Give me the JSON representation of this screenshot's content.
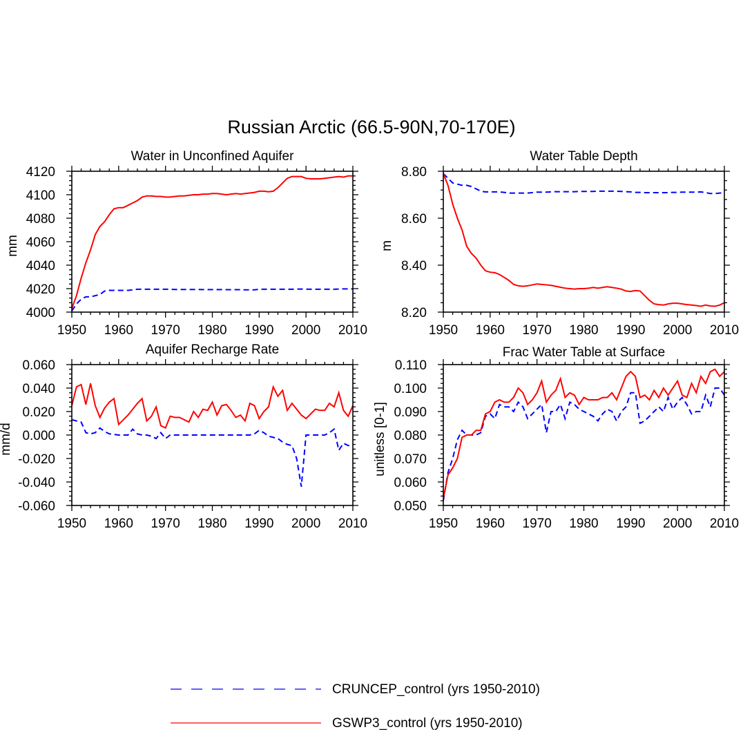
{
  "figure_title": "Russian Arctic (66.5-90N,70-170E)",
  "colors": {
    "cruncep": "#0000ff",
    "gswp3": "#ff0000",
    "axis": "#000000"
  },
  "legend": {
    "items": [
      {
        "label": "CRUNCEP_control (yrs 1950-2010)",
        "style": "dashed",
        "color": "#0000ff"
      },
      {
        "label": "GSWP3_control (yrs 1950-2010)",
        "style": "solid",
        "color": "#ff0000"
      }
    ]
  },
  "chart_data": [
    {
      "type": "line",
      "title": "Water in Unconfined Aquifer",
      "xlabel": "",
      "ylabel": "mm",
      "xlim": [
        1950,
        2010
      ],
      "ylim": [
        4000,
        4120
      ],
      "xticks": [
        "1950",
        "1960",
        "1970",
        "1980",
        "1990",
        "2000",
        "2010"
      ],
      "yticks": [
        "4000",
        "4020",
        "4040",
        "4060",
        "4080",
        "4100",
        "4120"
      ],
      "ytick_values": [
        4000,
        4020,
        4040,
        4060,
        4080,
        4100,
        4120
      ],
      "x_start": 1950,
      "series": [
        {
          "name": "CRUNCEP_control",
          "values": [
            4001,
            4007,
            4011,
            4013,
            4013,
            4014,
            4015,
            4018,
            4018.5,
            4018.5,
            4018.5,
            4018.5,
            4018.5,
            4019,
            4019.5,
            4019.5,
            4019.5,
            4019.5,
            4019.5,
            4019.5,
            4019.5,
            4019.5,
            4019.3,
            4019.3,
            4019.3,
            4019.3,
            4019.3,
            4019.3,
            4019.2,
            4019.2,
            4019.2,
            4019.2,
            4019.2,
            4019.1,
            4019.1,
            4019.1,
            4019.1,
            4019,
            4019,
            4019,
            4019.5,
            4019.5,
            4019.5,
            4019.5,
            4019.5,
            4019.5,
            4019.5,
            4019.5,
            4019.6,
            4019.6,
            4019.6,
            4019.5,
            4019.5,
            4019.5,
            4019.5,
            4019.5,
            4019.5,
            4019.6,
            4019.8,
            4019.8,
            4019.8
          ]
        },
        {
          "name": "GSWP3_control",
          "values": [
            4003,
            4014,
            4029,
            4042,
            4053,
            4066,
            4073,
            4077,
            4083,
            4088,
            4089,
            4089,
            4091,
            4093,
            4095,
            4098,
            4099,
            4099,
            4098.5,
            4098.5,
            4098,
            4098,
            4098.5,
            4099,
            4099,
            4099.5,
            4100,
            4100,
            4100.5,
            4100.5,
            4101,
            4101,
            4100.5,
            4100,
            4100.5,
            4101,
            4100.5,
            4101,
            4101.5,
            4102,
            4103,
            4103,
            4102.5,
            4103,
            4106,
            4110,
            4114,
            4115.5,
            4115.5,
            4115.5,
            4114,
            4113.5,
            4113.5,
            4113.5,
            4114,
            4114.5,
            4115,
            4115.5,
            4115,
            4116,
            4116
          ]
        }
      ]
    },
    {
      "type": "line",
      "title": "Water Table Depth",
      "xlabel": "",
      "ylabel": "m",
      "xlim": [
        1950,
        2010
      ],
      "ylim": [
        8.2,
        8.8
      ],
      "xticks": [
        "1950",
        "1960",
        "1970",
        "1980",
        "1990",
        "2000",
        "2010"
      ],
      "yticks": [
        "8.20",
        "8.40",
        "8.60",
        "8.80"
      ],
      "ytick_values": [
        8.2,
        8.4,
        8.6,
        8.8
      ],
      "x_start": 1950,
      "series": [
        {
          "name": "CRUNCEP_control",
          "values": [
            8.79,
            8.77,
            8.75,
            8.745,
            8.74,
            8.74,
            8.735,
            8.725,
            8.715,
            8.712,
            8.712,
            8.712,
            8.712,
            8.71,
            8.707,
            8.707,
            8.707,
            8.707,
            8.707,
            8.709,
            8.711,
            8.711,
            8.711,
            8.712,
            8.713,
            8.713,
            8.713,
            8.713,
            8.713,
            8.714,
            8.714,
            8.714,
            8.714,
            8.715,
            8.715,
            8.715,
            8.715,
            8.715,
            8.714,
            8.713,
            8.712,
            8.71,
            8.71,
            8.709,
            8.709,
            8.709,
            8.709,
            8.709,
            8.709,
            8.71,
            8.71,
            8.711,
            8.711,
            8.711,
            8.711,
            8.712,
            8.709,
            8.705,
            8.705,
            8.707,
            8.709
          ]
        },
        {
          "name": "GSWP3_control",
          "values": [
            8.79,
            8.74,
            8.66,
            8.6,
            8.55,
            8.48,
            8.45,
            8.43,
            8.4,
            8.376,
            8.37,
            8.368,
            8.36,
            8.348,
            8.335,
            8.318,
            8.312,
            8.31,
            8.312,
            8.316,
            8.32,
            8.318,
            8.316,
            8.314,
            8.31,
            8.306,
            8.302,
            8.3,
            8.298,
            8.3,
            8.3,
            8.302,
            8.305,
            8.302,
            8.305,
            8.308,
            8.305,
            8.302,
            8.298,
            8.29,
            8.288,
            8.292,
            8.29,
            8.27,
            8.25,
            8.235,
            8.232,
            8.23,
            8.235,
            8.238,
            8.238,
            8.235,
            8.232,
            8.23,
            8.228,
            8.225,
            8.23,
            8.226,
            8.225,
            8.23,
            8.24
          ]
        }
      ]
    },
    {
      "type": "line",
      "title": "Aquifer Recharge Rate",
      "xlabel": "",
      "ylabel": "mm/d",
      "xlim": [
        1950,
        2010
      ],
      "ylim": [
        -0.06,
        0.06
      ],
      "xticks": [
        "1950",
        "1960",
        "1970",
        "1980",
        "1990",
        "2000",
        "2010"
      ],
      "yticks": [
        "-0.060",
        "-0.040",
        "-0.020",
        "0.000",
        "0.020",
        "0.040",
        "0.060"
      ],
      "ytick_values": [
        -0.06,
        -0.04,
        -0.02,
        0,
        0.02,
        0.04,
        0.06
      ],
      "x_start": 1950,
      "series": [
        {
          "name": "CRUNCEP_control",
          "values": [
            0.013,
            0.012,
            0.011,
            0.002,
            0.001,
            0.002,
            0.006,
            0.003,
            0.001,
            0.0005,
            0,
            0,
            0,
            0.005,
            0.001,
            0,
            0,
            -0.001,
            -0.003,
            0.002,
            -0.003,
            0,
            0,
            0,
            0,
            0,
            0,
            0,
            0,
            0,
            0,
            0,
            0,
            0,
            0,
            0,
            0,
            0,
            0,
            0.001,
            0.004,
            0.002,
            -0.001,
            -0.002,
            -0.003,
            -0.006,
            -0.008,
            -0.009,
            -0.02,
            -0.044,
            0,
            0,
            0,
            0,
            0,
            0.002,
            0.005,
            -0.013,
            -0.007,
            -0.009,
            -0.009
          ]
        },
        {
          "name": "GSWP3_control",
          "values": [
            0.025,
            0.041,
            0.043,
            0.026,
            0.044,
            0.025,
            0.015,
            0.023,
            0.028,
            0.031,
            0.009,
            0.013,
            0.017,
            0.022,
            0.027,
            0.031,
            0.012,
            0.016,
            0.024,
            0.008,
            0.006,
            0.016,
            0.015,
            0.015,
            0.013,
            0.011,
            0.02,
            0.015,
            0.022,
            0.021,
            0.028,
            0.017,
            0.025,
            0.026,
            0.021,
            0.015,
            0.017,
            0.012,
            0.027,
            0.025,
            0.014,
            0.02,
            0.024,
            0.041,
            0.033,
            0.038,
            0.021,
            0.027,
            0.022,
            0.017,
            0.014,
            0.018,
            0.022,
            0.021,
            0.021,
            0.027,
            0.024,
            0.036,
            0.021,
            0.016,
            0.025
          ]
        }
      ]
    },
    {
      "type": "line",
      "title": "Frac Water Table at Surface",
      "xlabel": "",
      "ylabel": "unitless [0-1]",
      "xlim": [
        1950,
        2010
      ],
      "ylim": [
        0.05,
        0.11
      ],
      "xticks": [
        "1950",
        "1960",
        "1970",
        "1980",
        "1990",
        "2000",
        "2010"
      ],
      "yticks": [
        "0.050",
        "0.060",
        "0.070",
        "0.080",
        "0.090",
        "0.100",
        "0.110"
      ],
      "ytick_values": [
        0.05,
        0.06,
        0.07,
        0.08,
        0.09,
        0.1,
        0.11
      ],
      "x_start": 1950,
      "series": [
        {
          "name": "CRUNCEP_control",
          "values": [
            0.052,
            0.064,
            0.07,
            0.078,
            0.082,
            0.08,
            0.08,
            0.08,
            0.081,
            0.088,
            0.089,
            0.087,
            0.093,
            0.092,
            0.092,
            0.09,
            0.094,
            0.092,
            0.087,
            0.089,
            0.091,
            0.093,
            0.081,
            0.09,
            0.09,
            0.093,
            0.087,
            0.094,
            0.093,
            0.091,
            0.09,
            0.089,
            0.088,
            0.086,
            0.089,
            0.091,
            0.09,
            0.086,
            0.09,
            0.092,
            0.098,
            0.098,
            0.085,
            0.086,
            0.088,
            0.09,
            0.092,
            0.09,
            0.096,
            0.091,
            0.094,
            0.096,
            0.093,
            0.089,
            0.09,
            0.09,
            0.097,
            0.092,
            0.1,
            0.1,
            0.097
          ]
        },
        {
          "name": "GSWP3_control",
          "values": [
            0.053,
            0.063,
            0.066,
            0.07,
            0.079,
            0.08,
            0.08,
            0.082,
            0.082,
            0.089,
            0.09,
            0.094,
            0.095,
            0.094,
            0.094,
            0.096,
            0.1,
            0.098,
            0.093,
            0.095,
            0.098,
            0.103,
            0.094,
            0.097,
            0.099,
            0.104,
            0.096,
            0.098,
            0.097,
            0.093,
            0.096,
            0.095,
            0.095,
            0.095,
            0.096,
            0.096,
            0.098,
            0.095,
            0.1,
            0.105,
            0.107,
            0.105,
            0.096,
            0.097,
            0.095,
            0.099,
            0.096,
            0.1,
            0.097,
            0.1,
            0.103,
            0.097,
            0.096,
            0.102,
            0.098,
            0.105,
            0.102,
            0.107,
            0.108,
            0.105,
            0.107
          ]
        }
      ]
    }
  ]
}
